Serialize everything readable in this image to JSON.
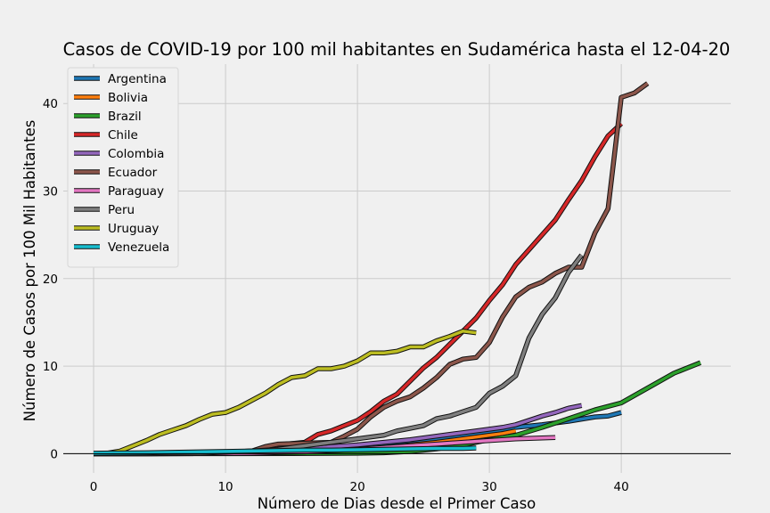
{
  "chart_data": {
    "type": "line",
    "title": "Casos de COVID-19 por 100 mil habitantes en Sudamérica hasta el 12-04-20",
    "xlabel": "Número de Dias desde el Primer Caso",
    "ylabel": "Número de Casos por 100 Mil Habitantes",
    "xlim": [
      -2.3,
      48.3
    ],
    "ylim": [
      -2.2,
      44.5
    ],
    "xticks": [
      0,
      10,
      20,
      30,
      40
    ],
    "yticks": [
      0,
      10,
      20,
      30,
      40
    ],
    "grid": true,
    "legend_position": "top-left",
    "series": [
      {
        "name": "Argentina",
        "color": "#1f77b4",
        "x": [
          0,
          2,
          4,
          6,
          8,
          10,
          12,
          14,
          16,
          18,
          20,
          22,
          24,
          26,
          28,
          30,
          32,
          34,
          36,
          38,
          39,
          40
        ],
        "y": [
          0,
          0,
          0.01,
          0.05,
          0.08,
          0.12,
          0.2,
          0.3,
          0.45,
          0.6,
          0.75,
          0.9,
          1.2,
          1.6,
          2.0,
          2.5,
          3.0,
          3.3,
          3.7,
          4.2,
          4.3,
          4.7
        ]
      },
      {
        "name": "Bolivia",
        "color": "#ff7f0e",
        "x": [
          0,
          4,
          8,
          12,
          16,
          20,
          22,
          24,
          26,
          28,
          30,
          31,
          32
        ],
        "y": [
          0,
          0,
          0.01,
          0.05,
          0.15,
          0.4,
          0.7,
          1.0,
          1.3,
          1.7,
          2.1,
          2.3,
          2.6
        ]
      },
      {
        "name": "Brazil",
        "color": "#2ca02c",
        "x": [
          0,
          5,
          10,
          15,
          20,
          22,
          24,
          26,
          28,
          30,
          32,
          34,
          36,
          38,
          40,
          42,
          44,
          45,
          46
        ],
        "y": [
          0,
          0,
          0,
          0.02,
          0.05,
          0.1,
          0.25,
          0.55,
          1.0,
          1.6,
          2.1,
          3.0,
          4.0,
          5.0,
          5.8,
          7.5,
          9.2,
          9.8,
          10.4
        ]
      },
      {
        "name": "Chile",
        "color": "#d62728",
        "x": [
          0,
          2,
          4,
          6,
          8,
          10,
          12,
          14,
          16,
          17,
          18,
          20,
          21,
          22,
          23,
          24,
          25,
          26,
          27,
          28,
          29,
          30,
          31,
          32,
          33,
          34,
          35,
          36,
          37,
          38,
          39,
          40
        ],
        "y": [
          0,
          0,
          0,
          0.02,
          0.05,
          0.1,
          0.3,
          1.0,
          1.3,
          2.2,
          2.6,
          3.8,
          4.8,
          6.0,
          6.8,
          8.3,
          9.8,
          11.0,
          12.5,
          14.0,
          15.5,
          17.5,
          19.3,
          21.6,
          23.3,
          25.0,
          26.7,
          29.0,
          31.2,
          33.9,
          36.3,
          37.7
        ]
      },
      {
        "name": "Colombia",
        "color": "#9467bd",
        "x": [
          0,
          4,
          8,
          12,
          14,
          16,
          18,
          20,
          22,
          24,
          26,
          28,
          30,
          31,
          32,
          33,
          34,
          35,
          36,
          37
        ],
        "y": [
          0,
          0,
          0.01,
          0.1,
          0.3,
          0.5,
          0.8,
          1.0,
          1.3,
          1.6,
          2.0,
          2.4,
          2.8,
          3.0,
          3.3,
          3.8,
          4.3,
          4.7,
          5.2,
          5.5
        ]
      },
      {
        "name": "Ecuador",
        "color": "#8c564b",
        "x": [
          0,
          4,
          8,
          12,
          13,
          14,
          16,
          18,
          19,
          20,
          21,
          22,
          23,
          24,
          25,
          26,
          27,
          28,
          29,
          30,
          31,
          32,
          33,
          34,
          35,
          36,
          37,
          38,
          39,
          40,
          41,
          42
        ],
        "y": [
          0,
          0,
          0.01,
          0.3,
          0.8,
          1.1,
          1.2,
          1.3,
          2.0,
          2.8,
          4.2,
          5.3,
          6.0,
          6.5,
          7.5,
          8.7,
          10.2,
          10.8,
          11.0,
          12.7,
          15.6,
          17.9,
          19.0,
          19.6,
          20.6,
          21.3,
          21.3,
          25.2,
          28.0,
          40.7,
          41.2,
          42.3
        ]
      },
      {
        "name": "Paraguay",
        "color": "#e377c2",
        "x": [
          0,
          4,
          8,
          12,
          16,
          20,
          24,
          26,
          28,
          30,
          32,
          34,
          35
        ],
        "y": [
          0,
          0,
          0.01,
          0.05,
          0.2,
          0.5,
          0.9,
          1.1,
          1.3,
          1.5,
          1.7,
          1.8,
          1.85
        ]
      },
      {
        "name": "Peru",
        "color": "#7f7f7f",
        "x": [
          0,
          4,
          8,
          12,
          14,
          16,
          18,
          20,
          21,
          22,
          23,
          24,
          25,
          26,
          27,
          28,
          29,
          30,
          31,
          32,
          33,
          34,
          35,
          36,
          37
        ],
        "y": [
          0,
          0,
          0.05,
          0.3,
          0.5,
          0.9,
          1.3,
          1.7,
          1.9,
          2.1,
          2.6,
          2.9,
          3.2,
          4.0,
          4.3,
          4.8,
          5.3,
          6.9,
          7.7,
          8.9,
          13.2,
          15.9,
          17.8,
          20.7,
          22.7
        ]
      },
      {
        "name": "Uruguay",
        "color": "#bcbd22",
        "x": [
          0,
          1,
          2,
          3,
          4,
          5,
          6,
          7,
          8,
          9,
          10,
          11,
          12,
          13,
          14,
          15,
          16,
          17,
          18,
          19,
          20,
          21,
          22,
          23,
          24,
          25,
          26,
          27,
          28,
          29
        ],
        "y": [
          0,
          0.05,
          0.3,
          0.9,
          1.5,
          2.2,
          2.7,
          3.2,
          3.9,
          4.5,
          4.7,
          5.3,
          6.1,
          6.9,
          7.9,
          8.7,
          8.9,
          9.7,
          9.7,
          10.0,
          10.6,
          11.5,
          11.5,
          11.7,
          12.2,
          12.2,
          12.9,
          13.4,
          14.0,
          13.8
        ]
      },
      {
        "name": "Venezuela",
        "color": "#17becf",
        "x": [
          0,
          2,
          4,
          6,
          8,
          10,
          12,
          14,
          16,
          18,
          20,
          22,
          24,
          26,
          28,
          29
        ],
        "y": [
          0.05,
          0.08,
          0.1,
          0.15,
          0.2,
          0.25,
          0.3,
          0.35,
          0.4,
          0.4,
          0.45,
          0.5,
          0.55,
          0.6,
          0.6,
          0.65
        ]
      }
    ]
  }
}
